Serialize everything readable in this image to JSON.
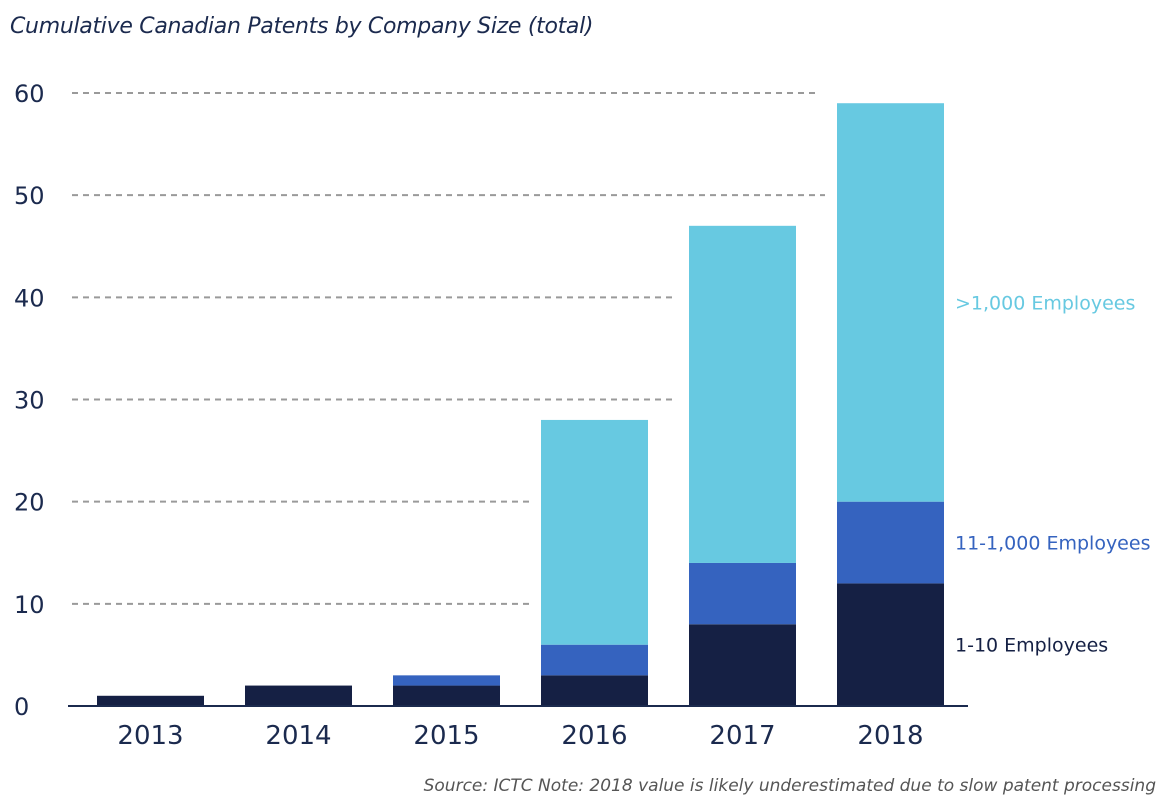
{
  "chart_data": {
    "type": "bar",
    "stacked": true,
    "title": "Cumulative Canadian Patents by Company Size (total)",
    "xlabel": "",
    "ylabel": "",
    "categories": [
      "2013",
      "2014",
      "2015",
      "2016",
      "2017",
      "2018"
    ],
    "series": [
      {
        "name": "1-10 Employees",
        "color": "#152044",
        "values": [
          1,
          2,
          2,
          3,
          8,
          12
        ]
      },
      {
        "name": "11-1,000 Employees",
        "color": "#3563bf",
        "values": [
          0,
          0,
          1,
          3,
          6,
          8
        ]
      },
      {
        "name": ">1,000 Employees",
        "color": "#67c9e1",
        "values": [
          0,
          0,
          0,
          22,
          33,
          39
        ]
      }
    ],
    "ylim": [
      0,
      60
    ],
    "yticks": [
      0,
      10,
      20,
      30,
      40,
      50,
      60
    ],
    "grid": "dashed horizontal",
    "legend": "right, beside the 2018 bar segments",
    "source": "Source: ICTC  Note: 2018 value is likely underestimated due to slow patent processing"
  }
}
